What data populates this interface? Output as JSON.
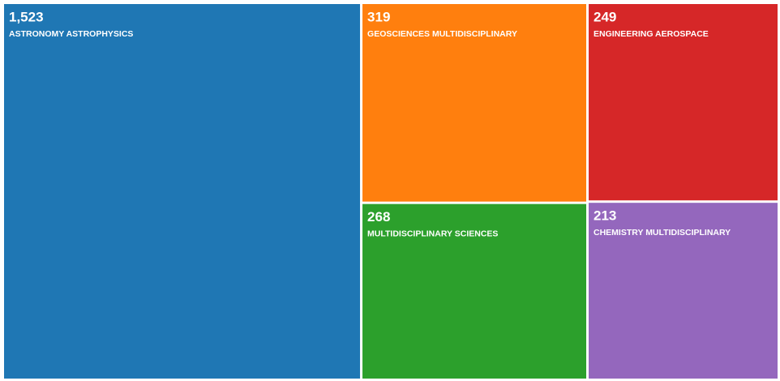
{
  "chart_data": {
    "type": "treemap",
    "categories": [
      "ASTRONOMY ASTROPHYSICS",
      "GEOSCIENCES MULTIDISCIPLINARY",
      "MULTIDISCIPLINARY SCIENCES",
      "ENGINEERING AEROSPACE",
      "CHEMISTRY MULTIDISCIPLINARY"
    ],
    "values": [
      1523,
      319,
      268,
      249,
      213
    ],
    "value_labels": [
      "1,523",
      "319",
      "268",
      "249",
      "213"
    ],
    "colors": [
      "#1f77b4",
      "#ff7f0e",
      "#2ca02c",
      "#d62728",
      "#9467bd"
    ]
  }
}
